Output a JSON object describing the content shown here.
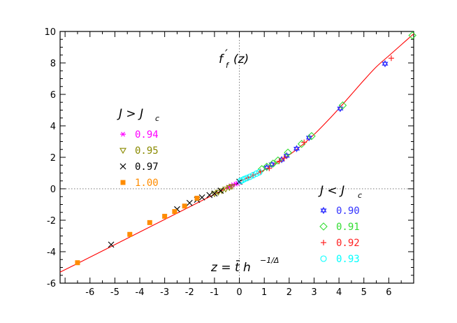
{
  "chart_data": {
    "type": "scatter",
    "title": "",
    "xlabel": "",
    "ylabel": "",
    "xlim": [
      -7.2,
      7.0
    ],
    "ylim": [
      -6,
      10
    ],
    "xticks": [
      "-6",
      "-5",
      "-4",
      "-3",
      "-2",
      "-1",
      "0",
      "1",
      "2",
      "3",
      "4",
      "5",
      "6"
    ],
    "yticks": [
      "-6",
      "-4",
      "-2",
      "0",
      "2",
      "4",
      "6",
      "8",
      "10"
    ],
    "annotations": {
      "function_label": "f",
      "function_prime": "′",
      "function_sub": "f",
      "function_arg": "(z)",
      "scaling_label": "z = t̄ h",
      "scaling_exponent": "−1/Δ"
    },
    "legend_above": {
      "title": "J > J",
      "title_sub": "c",
      "entries": [
        {
          "label": "0.94",
          "marker": "asterisk",
          "color": "#ff00ff"
        },
        {
          "label": "0.95",
          "marker": "triangle-down",
          "color": "#8a8a00"
        },
        {
          "label": "0.97",
          "marker": "x",
          "color": "#000000"
        },
        {
          "label": "1.00",
          "marker": "square",
          "color": "#ff8c00"
        }
      ]
    },
    "legend_below": {
      "title": "J < J",
      "title_sub": "c",
      "entries": [
        {
          "label": "0.90",
          "marker": "star",
          "color": "#3333ff"
        },
        {
          "label": "0.91",
          "marker": "diamond",
          "color": "#33dd33"
        },
        {
          "label": "0.92",
          "marker": "plus",
          "color": "#ff2222"
        },
        {
          "label": "0.93",
          "marker": "circle",
          "color": "#00ffff"
        }
      ]
    },
    "curve": {
      "color": "#ff0000",
      "points": [
        [
          -7.2,
          -5.3
        ],
        [
          -6.5,
          -4.75
        ],
        [
          -6,
          -4.35
        ],
        [
          -5,
          -3.55
        ],
        [
          -4,
          -2.75
        ],
        [
          -3,
          -1.95
        ],
        [
          -2,
          -1.15
        ],
        [
          -1,
          -0.35
        ],
        [
          -0.5,
          0.05
        ],
        [
          0,
          0.45
        ],
        [
          0.5,
          0.8
        ],
        [
          1,
          1.2
        ],
        [
          1.5,
          1.65
        ],
        [
          2,
          2.15
        ],
        [
          2.5,
          2.75
        ],
        [
          3,
          3.45
        ],
        [
          3.5,
          4.25
        ],
        [
          4,
          5.1
        ],
        [
          4.5,
          6.0
        ],
        [
          5,
          6.9
        ],
        [
          5.5,
          7.75
        ],
        [
          6,
          8.45
        ],
        [
          6.5,
          9.15
        ],
        [
          7.0,
          9.85
        ]
      ]
    },
    "series": [
      {
        "name": "0.94",
        "marker": "asterisk",
        "color": "#ff00ff",
        "points": [
          [
            -0.45,
            0.1
          ],
          [
            -0.35,
            0.18
          ],
          [
            -0.25,
            0.25
          ],
          [
            -0.15,
            0.3
          ],
          [
            -0.08,
            0.35
          ],
          [
            -0.02,
            0.4
          ]
        ]
      },
      {
        "name": "0.95",
        "marker": "triangle-down",
        "color": "#8a8a00",
        "points": [
          [
            -1.0,
            -0.32
          ],
          [
            -0.85,
            -0.22
          ],
          [
            -0.7,
            -0.12
          ],
          [
            -0.55,
            -0.02
          ],
          [
            -0.4,
            0.08
          ],
          [
            -0.3,
            0.15
          ]
        ]
      },
      {
        "name": "0.97",
        "marker": "x",
        "color": "#000000",
        "points": [
          [
            -5.15,
            -3.55
          ],
          [
            -2.5,
            -1.3
          ],
          [
            -2.0,
            -0.9
          ],
          [
            -1.7,
            -0.7
          ],
          [
            -1.5,
            -0.55
          ],
          [
            -1.2,
            -0.4
          ],
          [
            -1.0,
            -0.3
          ],
          [
            -0.75,
            -0.12
          ],
          [
            0.0,
            0.45
          ]
        ]
      },
      {
        "name": "1.00",
        "marker": "square",
        "color": "#ff8c00",
        "points": [
          [
            -6.5,
            -4.7
          ],
          [
            -4.4,
            -2.9
          ],
          [
            -3.6,
            -2.15
          ],
          [
            -3.0,
            -1.75
          ],
          [
            -2.6,
            -1.45
          ],
          [
            -2.2,
            -1.1
          ],
          [
            -1.7,
            -0.6
          ]
        ]
      },
      {
        "name": "0.90",
        "marker": "star",
        "color": "#3333ff",
        "points": [
          [
            5.85,
            7.95
          ],
          [
            4.05,
            5.1
          ],
          [
            2.8,
            3.25
          ],
          [
            2.3,
            2.55
          ],
          [
            1.9,
            2.1
          ],
          [
            1.7,
            1.85
          ],
          [
            1.3,
            1.55
          ],
          [
            1.1,
            1.35
          ]
        ]
      },
      {
        "name": "0.91",
        "marker": "diamond",
        "color": "#33dd33",
        "points": [
          [
            6.95,
            9.75
          ],
          [
            4.15,
            5.3
          ],
          [
            2.9,
            3.35
          ],
          [
            2.5,
            2.85
          ],
          [
            1.95,
            2.3
          ],
          [
            1.55,
            1.8
          ],
          [
            1.35,
            1.6
          ],
          [
            1.1,
            1.4
          ],
          [
            0.9,
            1.25
          ]
        ]
      },
      {
        "name": "0.92",
        "marker": "plus",
        "color": "#ff2222",
        "points": [
          [
            6.1,
            8.3
          ],
          [
            2.6,
            2.95
          ],
          [
            1.8,
            1.95
          ],
          [
            1.6,
            1.75
          ],
          [
            1.2,
            1.3
          ],
          [
            0.85,
            1.1
          ],
          [
            0.55,
            0.88
          ],
          [
            0.35,
            0.7
          ]
        ]
      },
      {
        "name": "0.93",
        "marker": "circle",
        "color": "#00ffff",
        "points": [
          [
            0.05,
            0.5
          ],
          [
            0.12,
            0.55
          ],
          [
            0.2,
            0.62
          ],
          [
            0.3,
            0.68
          ],
          [
            0.42,
            0.76
          ],
          [
            0.55,
            0.86
          ],
          [
            0.68,
            0.96
          ],
          [
            0.8,
            1.05
          ]
        ]
      }
    ]
  }
}
